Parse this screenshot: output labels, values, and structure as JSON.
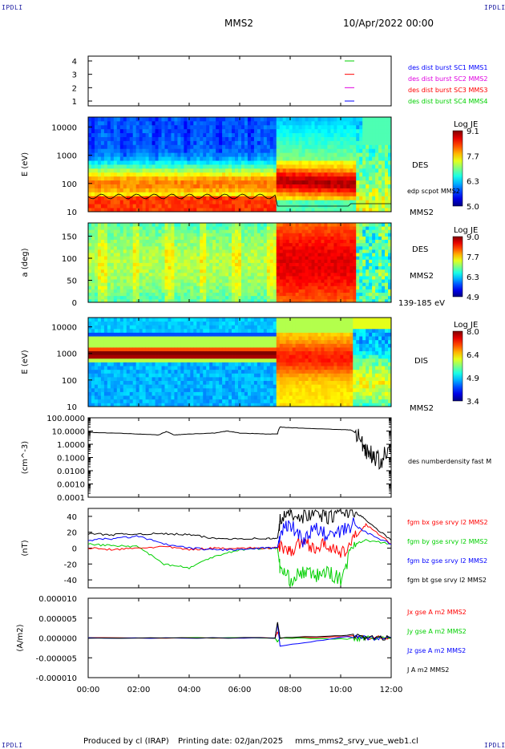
{
  "header": {
    "corner_label": "IPDLI",
    "spacecraft": "MMS2",
    "date": "10/Apr/2022 00:00"
  },
  "footer": {
    "produced_by": "Produced by cl (IRAP)",
    "printing_date": "Printing date: 02/Jan/2025",
    "file": "mms_mms2_srvy_vue_web1.cl"
  },
  "colors": {
    "red": "#ff0000",
    "green": "#00d000",
    "blue": "#0000ff",
    "black": "#000000",
    "magenta": "#e000e0"
  },
  "time_axis": {
    "ticks": [
      "00:00",
      "02:00",
      "04:00",
      "06:00",
      "08:00",
      "10:00",
      "12:00"
    ],
    "range_hours": [
      0,
      12
    ]
  },
  "chart_data": [
    {
      "type": "line",
      "panel": "burst",
      "y_ticks": [
        "1",
        "2",
        "3",
        "4"
      ],
      "series": [
        {
          "name": "des dist burst SC1 MMS1",
          "color": "#0000ff",
          "y": 1
        },
        {
          "name": "des dist burst SC2 MMS2",
          "color": "#e000e0",
          "y": 2
        },
        {
          "name": "des dist burst SC3 MMS3",
          "color": "#ff0000",
          "y": 3
        },
        {
          "name": "des dist burst SC4 MMS4",
          "color": "#00d000",
          "y": 4
        }
      ]
    },
    {
      "type": "heatmap",
      "panel": "des-energy",
      "ylabel": "E (eV)",
      "y_ticks": [
        "10",
        "100",
        "1000",
        "10000"
      ],
      "yscale": "log",
      "right_labels": [
        "DES",
        "edp scpot MMS2",
        "MMS2"
      ],
      "colorbar": {
        "title": "Log JE",
        "ticks": [
          "9.1",
          "7.7",
          "6.3",
          "5.0"
        ],
        "range": [
          5.0,
          9.1
        ]
      }
    },
    {
      "type": "heatmap",
      "panel": "des-pitch",
      "ylabel": "a (deg)",
      "y_ticks": [
        "0",
        "50",
        "100",
        "150"
      ],
      "right_labels": [
        "DES",
        "MMS2",
        "139-185 eV"
      ],
      "colorbar": {
        "title": "Log JE",
        "ticks": [
          "9.0",
          "7.7",
          "6.3",
          "4.9"
        ],
        "range": [
          4.9,
          9.0
        ]
      }
    },
    {
      "type": "heatmap",
      "panel": "dis-energy",
      "ylabel": "E (eV)",
      "y_ticks": [
        "10",
        "100",
        "1000",
        "10000"
      ],
      "yscale": "log",
      "right_labels": [
        "DIS",
        "MMS2"
      ],
      "colorbar": {
        "title": "Log JE",
        "ticks": [
          "8.0",
          "6.4",
          "4.9",
          "3.4"
        ],
        "range": [
          3.4,
          8.0
        ]
      }
    },
    {
      "type": "line",
      "panel": "density",
      "ylabel": "(cm^-3)",
      "yscale": "log",
      "y_ticks": [
        "100.0000",
        "10.0000",
        "1.0000",
        "0.1000",
        "0.0100",
        "0.0010",
        "0.0001"
      ],
      "series": [
        {
          "name": "des numberdensity fast M",
          "color": "#000000",
          "x": [
            0,
            1,
            2,
            2.8,
            3.1,
            3.4,
            4,
            5,
            5.5,
            6,
            7,
            7.5,
            7.6,
            8,
            9,
            10,
            10.4,
            10.8,
            11,
            11.3,
            11.6,
            12
          ],
          "y": [
            8,
            7,
            6,
            5,
            9,
            5,
            6,
            7,
            10,
            7,
            6,
            6,
            20,
            18,
            15,
            13,
            12,
            1.5,
            0.4,
            0.1,
            0.05,
            0.3
          ]
        }
      ]
    },
    {
      "type": "line",
      "panel": "magnetic-field",
      "ylabel": "(nT)",
      "y_ticks": [
        "40",
        "20",
        "0",
        "-20",
        "-40"
      ],
      "ylim": [
        -50,
        50
      ],
      "series": [
        {
          "name": "fgm bx gse srvy l2 MMS2",
          "color": "#ff0000",
          "x": [
            0,
            1,
            2,
            3,
            4,
            5,
            6,
            7,
            7.5,
            7.6,
            8,
            8.5,
            9,
            9.5,
            10,
            10.5,
            11,
            12
          ],
          "y": [
            0,
            -2,
            0,
            2,
            -2,
            0,
            0,
            0,
            0,
            5,
            -5,
            10,
            0,
            5,
            -10,
            10,
            30,
            5
          ]
        },
        {
          "name": "fgm by gse srvy l2 MMS2",
          "color": "#00d000",
          "x": [
            0,
            1,
            2,
            3,
            4,
            5,
            6,
            7,
            7.5,
            7.6,
            8,
            8.5,
            9,
            9.5,
            10,
            10.5,
            11,
            12
          ],
          "y": [
            5,
            3,
            2,
            -20,
            -25,
            -10,
            -2,
            0,
            0,
            -25,
            -40,
            -30,
            -35,
            -30,
            -40,
            5,
            10,
            5
          ]
        },
        {
          "name": "fgm bz gse srvy l2 MMS2",
          "color": "#0000ff",
          "x": [
            0,
            1,
            2,
            3,
            4,
            5,
            6,
            7,
            7.5,
            7.6,
            8,
            8.5,
            9,
            9.5,
            10,
            10.5,
            11,
            12
          ],
          "y": [
            10,
            12,
            15,
            5,
            0,
            -2,
            -2,
            0,
            0,
            20,
            30,
            10,
            25,
            15,
            20,
            30,
            20,
            5
          ]
        },
        {
          "name": "fgm bt gse srvy l2 MMS2",
          "color": "#000000",
          "x": [
            0,
            1,
            2,
            3,
            4,
            5,
            6,
            7,
            7.5,
            7.6,
            8,
            8.5,
            9,
            9.5,
            10,
            10.5,
            11,
            12
          ],
          "y": [
            18,
            17,
            18,
            18,
            17,
            12,
            12,
            12,
            12,
            35,
            45,
            40,
            45,
            38,
            45,
            48,
            35,
            10
          ]
        }
      ]
    },
    {
      "type": "line",
      "panel": "current-density",
      "ylabel": "(A/m2)",
      "y_ticks": [
        "0.000010",
        "0.000005",
        "0.000000",
        "-0.000005",
        "-0.000010"
      ],
      "ylim": [
        -1e-05,
        1e-05
      ],
      "series": [
        {
          "name": "Jx gse A m2 MMS2",
          "color": "#ff0000",
          "x": [
            0,
            7.4,
            7.5,
            7.6,
            10.5,
            11,
            12
          ],
          "y": [
            0,
            0,
            1.5e-06,
            0,
            4e-07,
            0,
            0
          ]
        },
        {
          "name": "Jy gse A m2 MMS2",
          "color": "#00d000",
          "x": [
            0,
            7.4,
            7.5,
            7.6,
            10.5,
            11,
            12
          ],
          "y": [
            0,
            0,
            -1e-06,
            0,
            -3e-07,
            0,
            0
          ]
        },
        {
          "name": "Jz gse A m2 MMS2",
          "color": "#0000ff",
          "x": [
            0,
            7.4,
            7.5,
            7.6,
            10.5,
            11,
            12
          ],
          "y": [
            0,
            0,
            3.5e-06,
            -2e-06,
            5e-07,
            0,
            0
          ]
        },
        {
          "name": "J A m2 MMS2",
          "color": "#000000",
          "x": [
            0,
            7.4,
            7.5,
            7.6,
            10.5,
            11,
            12
          ],
          "y": [
            0,
            0,
            4e-06,
            0,
            7e-07,
            0,
            0
          ]
        }
      ]
    }
  ]
}
